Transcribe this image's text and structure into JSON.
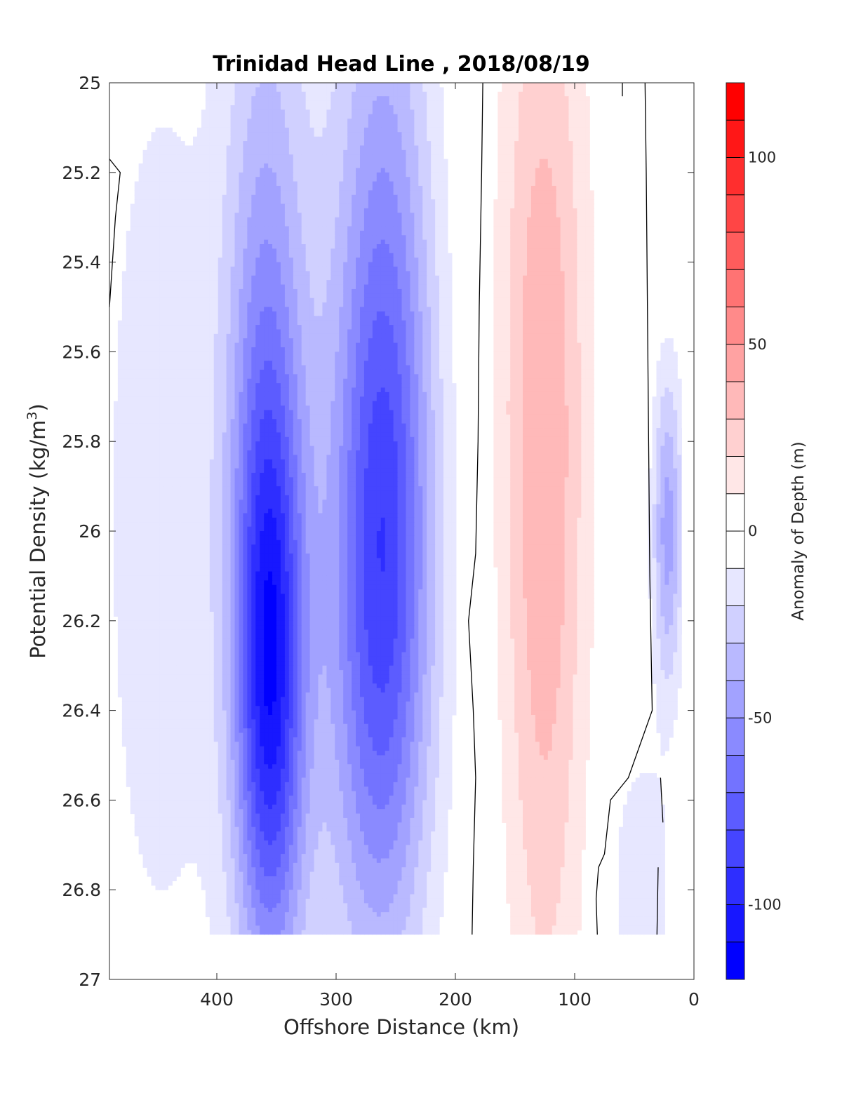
{
  "chart_data": {
    "type": "contour",
    "title": "Trinidad Head Line , 2018/08/19",
    "xlabel": "Offshore Distance (km)",
    "ylabel_main": "Potential Density (kg/m",
    "ylabel_sup": "3",
    "ylabel_close": ")",
    "colorbar_label": "Anomaly of Depth (m)",
    "x_axis": {
      "reversed": true,
      "lim": [
        0,
        490
      ],
      "ticks": [
        400,
        300,
        200,
        100,
        0
      ],
      "tick_labels": [
        "400",
        "300",
        "200",
        "100",
        "0"
      ]
    },
    "y_axis": {
      "reversed": true,
      "lim": [
        25,
        27
      ],
      "ticks": [
        25,
        25.2,
        25.4,
        25.6,
        25.8,
        26,
        26.2,
        26.4,
        26.6,
        26.8,
        27
      ],
      "tick_labels": [
        "25",
        "25.2",
        "25.4",
        "25.6",
        "25.8",
        "26",
        "26.2",
        "26.4",
        "26.6",
        "26.8",
        "27"
      ]
    },
    "colorbar": {
      "lim": [
        -120,
        120
      ],
      "step": 10,
      "ticks": [
        100,
        50,
        0,
        -50,
        -100
      ],
      "tick_labels": [
        "100",
        "50",
        "0",
        "-50",
        "-100"
      ],
      "colors": [
        "#0000ff",
        "#1717ff",
        "#2e2eff",
        "#4545ff",
        "#5c5cff",
        "#7373ff",
        "#8a8aff",
        "#a2a2ff",
        "#b9b9ff",
        "#d0d0ff",
        "#e7e7ff",
        "#ffffff",
        "#ffffff",
        "#ffe7e7",
        "#ffd0d0",
        "#ffb9b9",
        "#ffa2a2",
        "#ff8a8a",
        "#ff7373",
        "#ff5c5c",
        "#ff4545",
        "#ff2e2e",
        "#ff1717",
        "#ff0000"
      ]
    },
    "data_extent": {
      "x": [
        10,
        490
      ],
      "y": [
        25.0,
        26.9
      ]
    },
    "anomaly_features": [
      {
        "x": 450,
        "y": 25.95,
        "sx": 40,
        "sy": 0.9,
        "amp": -15
      },
      {
        "x": 355,
        "y": 26.35,
        "sx": 20,
        "sy": 0.45,
        "amp": -75
      },
      {
        "x": 360,
        "y": 25.75,
        "sx": 24,
        "sy": 0.7,
        "amp": -42
      },
      {
        "x": 262,
        "y": 26.2,
        "sx": 30,
        "sy": 0.55,
        "amp": -55
      },
      {
        "x": 258,
        "y": 25.55,
        "sx": 28,
        "sy": 0.7,
        "amp": -38
      },
      {
        "x": 310,
        "y": 26.0,
        "sx": 55,
        "sy": 1.2,
        "amp": -12
      },
      {
        "x": 125,
        "y": 26.1,
        "sx": 24,
        "sy": 0.9,
        "amp": 28
      },
      {
        "x": 128,
        "y": 25.45,
        "sx": 30,
        "sy": 0.7,
        "amp": 15
      },
      {
        "x": 22,
        "y": 26.0,
        "sx": 9,
        "sy": 0.25,
        "amp": -45
      },
      {
        "x": 45,
        "y": 26.8,
        "sx": 18,
        "sy": 0.22,
        "amp": -20
      }
    ],
    "zero_contours": [
      {
        "x": [
          490,
          481,
          485,
          490
        ],
        "y": [
          25.17,
          25.2,
          25.3,
          25.5
        ]
      },
      {
        "x": [
          177,
          178,
          180,
          181,
          183,
          189,
          185,
          183,
          185,
          186
        ],
        "y": [
          25.0,
          25.2,
          25.5,
          25.8,
          26.05,
          26.2,
          26.4,
          26.55,
          26.75,
          26.9
        ]
      },
      {
        "x": [
          41,
          40,
          39,
          38,
          37,
          35,
          55,
          70,
          75,
          80,
          82,
          81
        ],
        "y": [
          25.0,
          25.2,
          25.5,
          25.8,
          26.1,
          26.4,
          26.55,
          26.6,
          26.72,
          26.75,
          26.82,
          26.9
        ]
      },
      {
        "x": [
          60,
          60
        ],
        "y": [
          25.0,
          25.03
        ]
      },
      {
        "x": [
          28,
          26
        ],
        "y": [
          26.55,
          26.65
        ]
      },
      {
        "x": [
          30,
          31
        ],
        "y": [
          26.75,
          26.9
        ]
      }
    ]
  }
}
